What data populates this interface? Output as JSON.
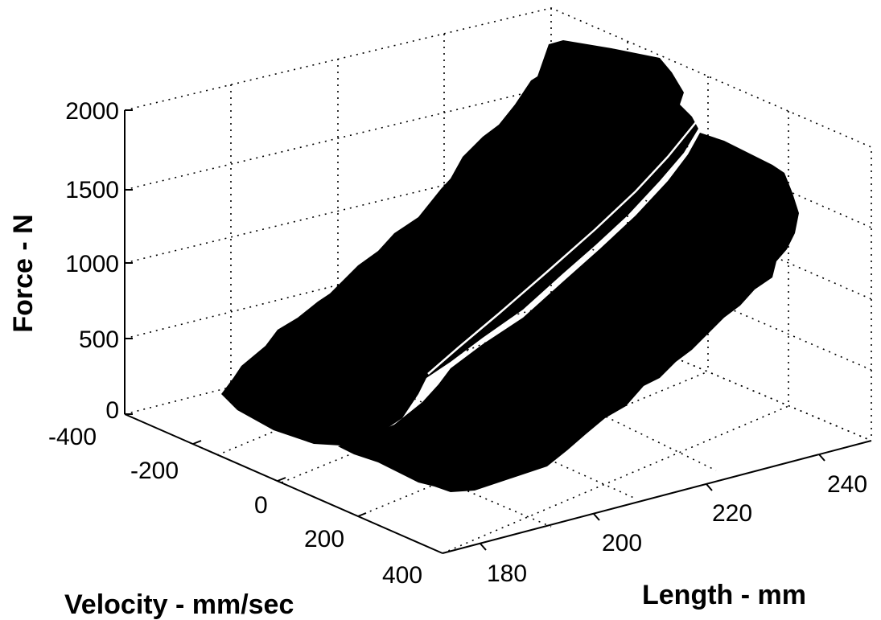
{
  "chart_data": {
    "type": "surface",
    "zlabel": "Force - N",
    "xlabel": "Length - mm",
    "ylabel": "Velocity - mm/sec",
    "x_ticks": [
      "180",
      "200",
      "220",
      "240"
    ],
    "y_ticks": [
      "-400",
      "-200",
      "0",
      "200",
      "400"
    ],
    "z_ticks": [
      "0",
      "500",
      "1000",
      "1500",
      "2000"
    ],
    "xlim": [
      175,
      245
    ],
    "ylim": [
      -400,
      400
    ],
    "zlim": [
      0,
      2000
    ],
    "grid": true,
    "surface_color": "#000000",
    "highlight_line": "zero-velocity curve (white)"
  }
}
